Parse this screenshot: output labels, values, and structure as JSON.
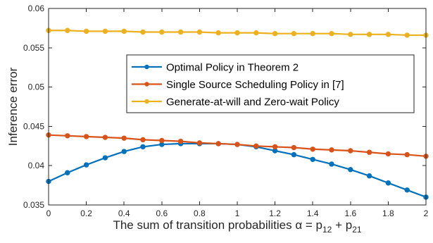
{
  "chart_data": {
    "type": "line",
    "xlabel": "The sum of transition probabilities α = p₁₂ + p₂₁",
    "ylabel": "Inference error",
    "xlim": [
      0,
      2
    ],
    "ylim": [
      0.035,
      0.06
    ],
    "xticks": [
      0,
      0.2,
      0.4,
      0.6,
      0.8,
      1,
      1.2,
      1.4,
      1.6,
      1.8,
      2
    ],
    "xtick_labels": [
      "0",
      "0.2",
      "0.4",
      "0.6",
      "0.8",
      "1",
      "1.2",
      "1.4",
      "1.6",
      "1.8",
      "2"
    ],
    "yticks": [
      0.035,
      0.04,
      0.045,
      0.05,
      0.055,
      0.06
    ],
    "ytick_labels": [
      "0.035",
      "0.04",
      "0.045",
      "0.05",
      "0.055",
      "0.06"
    ],
    "grid": false,
    "legend_position": "center-right",
    "x": [
      0,
      0.1,
      0.2,
      0.3,
      0.4,
      0.5,
      0.6,
      0.7,
      0.8,
      0.9,
      1.0,
      1.1,
      1.2,
      1.3,
      1.4,
      1.5,
      1.6,
      1.7,
      1.8,
      1.9,
      2.0
    ],
    "series": [
      {
        "name": "Optimal Policy in Theorem 2",
        "color": "#0072BD",
        "values": [
          0.038,
          0.0391,
          0.0401,
          0.041,
          0.0418,
          0.0424,
          0.0427,
          0.0428,
          0.0428,
          0.0428,
          0.0427,
          0.0424,
          0.0419,
          0.0414,
          0.0408,
          0.0402,
          0.0395,
          0.0387,
          0.0378,
          0.0369,
          0.036
        ]
      },
      {
        "name": "Single Source Scheduling Policy in [7]",
        "color": "#D95319",
        "values": [
          0.0439,
          0.0438,
          0.0437,
          0.0436,
          0.0435,
          0.0433,
          0.0432,
          0.0431,
          0.0429,
          0.0428,
          0.0427,
          0.0425,
          0.0424,
          0.0423,
          0.0421,
          0.042,
          0.0419,
          0.0417,
          0.0415,
          0.0414,
          0.0412
        ]
      },
      {
        "name": "Generate-at-will and Zero-wait Policy",
        "color": "#EDB120",
        "values": [
          0.0572,
          0.0572,
          0.0571,
          0.0571,
          0.0571,
          0.057,
          0.057,
          0.057,
          0.057,
          0.0569,
          0.0569,
          0.0569,
          0.0568,
          0.0568,
          0.0568,
          0.0568,
          0.0567,
          0.0567,
          0.0567,
          0.0566,
          0.0566
        ]
      }
    ]
  }
}
